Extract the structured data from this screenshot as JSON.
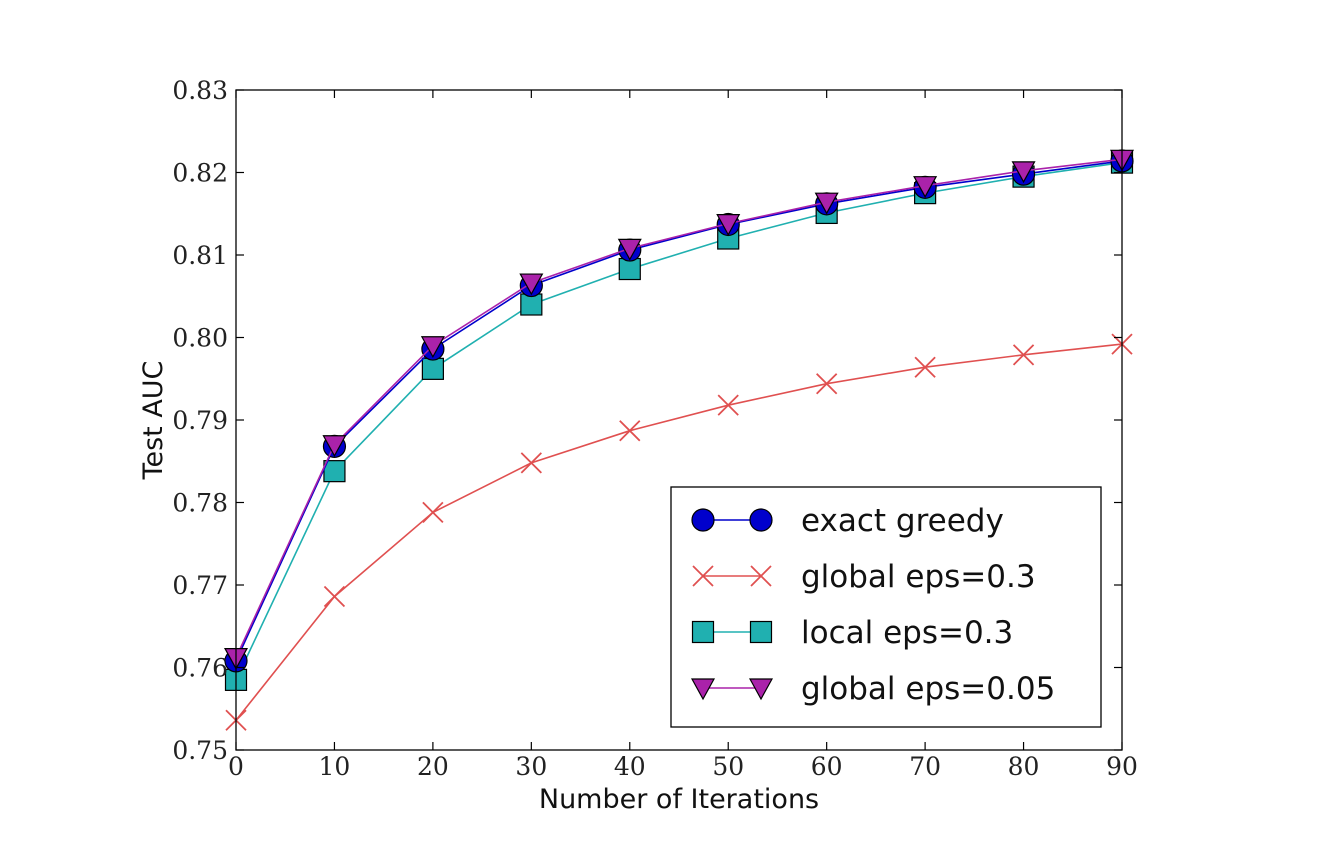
{
  "chart_data": {
    "type": "line",
    "xlabel": "Number of Iterations",
    "ylabel": "Test AUC",
    "xlim": [
      0,
      90
    ],
    "ylim": [
      0.75,
      0.83
    ],
    "x_ticks": [
      "0",
      "10",
      "20",
      "30",
      "40",
      "50",
      "60",
      "70",
      "80",
      "90"
    ],
    "y_ticks": [
      "0.75",
      "0.76",
      "0.77",
      "0.78",
      "0.79",
      "0.80",
      "0.81",
      "0.82",
      "0.83"
    ],
    "grid": false,
    "legend_position": "bottom-right",
    "x": [
      0,
      10,
      20,
      30,
      40,
      50,
      60,
      70,
      80,
      90
    ],
    "series": [
      {
        "name": "exact greedy",
        "color": "#0000cc",
        "marker": "circle",
        "values": [
          0.7608,
          0.7868,
          0.7986,
          0.8063,
          0.8106,
          0.8137,
          0.8162,
          0.8182,
          0.8198,
          0.8214
        ]
      },
      {
        "name": "global eps=0.3",
        "color": "#e05050",
        "marker": "x",
        "values": [
          0.7536,
          0.7686,
          0.7788,
          0.7848,
          0.7887,
          0.7918,
          0.7944,
          0.7964,
          0.7979,
          0.7992
        ]
      },
      {
        "name": "local eps=0.3",
        "color": "#20b0b0",
        "marker": "square",
        "values": [
          0.7585,
          0.7838,
          0.7962,
          0.804,
          0.8083,
          0.812,
          0.8151,
          0.8175,
          0.8195,
          0.8212
        ]
      },
      {
        "name": "global eps=0.05",
        "color": "#aa22aa",
        "marker": "triangle-down",
        "values": [
          0.7612,
          0.787,
          0.799,
          0.8066,
          0.8108,
          0.8138,
          0.8164,
          0.8184,
          0.8202,
          0.8216
        ]
      }
    ]
  }
}
